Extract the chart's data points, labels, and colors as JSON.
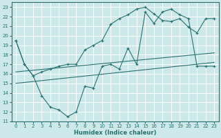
{
  "xlabel": "Humidex (Indice chaleur)",
  "background_color": "#cce8e8",
  "grid_color": "#aacccc",
  "line_color": "#2a7070",
  "xlim": [
    -0.5,
    23.5
  ],
  "ylim": [
    11,
    23.5
  ],
  "xticks": [
    0,
    1,
    2,
    3,
    4,
    5,
    6,
    7,
    8,
    9,
    10,
    11,
    12,
    13,
    14,
    15,
    16,
    17,
    18,
    19,
    20,
    21,
    22,
    23
  ],
  "yticks": [
    11,
    12,
    13,
    14,
    15,
    16,
    17,
    18,
    19,
    20,
    21,
    22,
    23
  ],
  "series1_x": [
    0,
    1,
    2,
    3,
    4,
    5,
    6,
    7,
    8,
    9,
    10,
    11,
    12,
    13,
    14,
    15,
    16,
    17,
    18,
    19,
    20,
    21,
    22,
    23
  ],
  "series1_y": [
    19.5,
    17.0,
    15.8,
    16.2,
    16.5,
    16.8,
    17.0,
    17.0,
    18.5,
    19.0,
    19.5,
    21.2,
    21.8,
    22.2,
    22.8,
    23.0,
    22.3,
    21.6,
    21.5,
    21.8,
    20.9,
    20.3,
    21.8,
    21.8
  ],
  "series2_x": [
    0,
    1,
    2,
    3,
    4,
    5,
    6,
    7,
    8,
    9,
    10,
    11,
    12,
    13,
    14,
    15,
    16,
    17,
    18,
    19,
    20,
    21,
    22,
    23
  ],
  "series2_y": [
    19.5,
    17.0,
    15.8,
    13.7,
    12.5,
    12.2,
    11.5,
    12.0,
    14.7,
    14.5,
    16.8,
    17.0,
    16.5,
    18.7,
    17.0,
    22.5,
    21.3,
    22.5,
    22.8,
    22.2,
    21.8,
    16.8,
    16.8,
    16.8
  ],
  "trend1_x": [
    0,
    23
  ],
  "trend1_y": [
    15.0,
    17.2
  ],
  "trend2_x": [
    0,
    23
  ],
  "trend2_y": [
    16.2,
    18.2
  ]
}
